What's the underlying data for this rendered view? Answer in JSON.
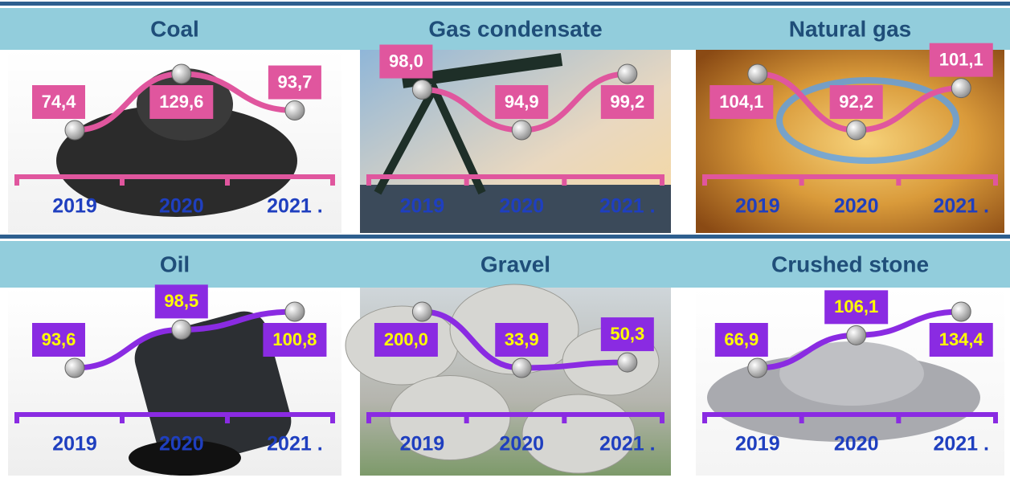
{
  "chart_data": [
    {
      "type": "line",
      "title": "Coal",
      "categories": [
        "2019",
        "2020",
        "2021 ."
      ],
      "values": [
        74.4,
        129.6,
        93.7
      ],
      "value_labels": [
        "74,4",
        "129,6",
        "93,7"
      ],
      "color": "#e0569e",
      "label_text_color": "#ffffff"
    },
    {
      "type": "line",
      "title": "Gas condensate",
      "categories": [
        "2019",
        "2020",
        "2021 ."
      ],
      "values": [
        98.0,
        94.9,
        99.2
      ],
      "value_labels": [
        "98,0",
        "94,9",
        "99,2"
      ],
      "color": "#e0569e",
      "label_text_color": "#ffffff"
    },
    {
      "type": "line",
      "title": "Natural gas",
      "categories": [
        "2019",
        "2020",
        "2021 ."
      ],
      "values": [
        104.1,
        92.2,
        101.1
      ],
      "value_labels": [
        "104,1",
        "92,2",
        "101,1"
      ],
      "color": "#e0569e",
      "label_text_color": "#ffffff"
    },
    {
      "type": "line",
      "title": "Oil",
      "categories": [
        "2019",
        "2020",
        "2021 ."
      ],
      "values": [
        93.6,
        98.5,
        100.8
      ],
      "value_labels": [
        "93,6",
        "98,5",
        "100,8"
      ],
      "color": "#8a2be2",
      "label_text_color": "#ffff00"
    },
    {
      "type": "line",
      "title": "Gravel",
      "categories": [
        "2019",
        "2020",
        "2021 ."
      ],
      "values": [
        200.0,
        33.9,
        50.3
      ],
      "value_labels": [
        "200,0",
        "33,9",
        "50,3"
      ],
      "color": "#8a2be2",
      "label_text_color": "#ffff00"
    },
    {
      "type": "line",
      "title": "Crushed stone",
      "categories": [
        "2019",
        "2020",
        "2021 ."
      ],
      "values": [
        66.9,
        106.1,
        134.4
      ],
      "value_labels": [
        "66,9",
        "106,1",
        "134,4"
      ],
      "color": "#8a2be2",
      "label_text_color": "#ffff00"
    }
  ]
}
